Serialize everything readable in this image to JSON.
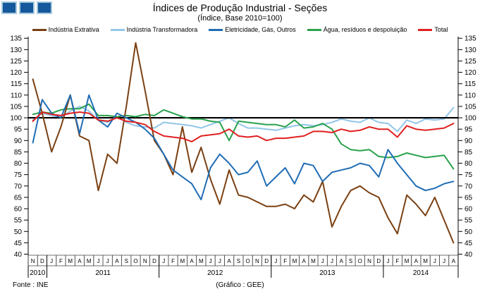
{
  "logo": {
    "square_color": "#15599c",
    "square_border": "#a9cadd",
    "count": 3
  },
  "header": {
    "title": "Índices de Produção Industrial - Seções",
    "subtitle": "(Índice, Base 2010=100)"
  },
  "footer": {
    "source": "Fonte : INE",
    "credit": "(Gráfico : GEE)"
  },
  "chart_data": {
    "type": "line",
    "title": "Índices de Produção Industrial - Seções",
    "subtitle": "(Índice, Base 2010=100)",
    "ylim": [
      40,
      135
    ],
    "ytick_step": 5,
    "baseline": 100,
    "grid": false,
    "legend_position": "top",
    "x_groups": [
      {
        "year": "2010",
        "months": [
          "N",
          "D"
        ]
      },
      {
        "year": "2011",
        "months": [
          "J",
          "F",
          "M",
          "A",
          "M",
          "J",
          "J",
          "A",
          "S",
          "O",
          "N",
          "D"
        ]
      },
      {
        "year": "2012",
        "months": [
          "J",
          "F",
          "M",
          "A",
          "M",
          "J",
          "J",
          "A",
          "S",
          "O",
          "N",
          "D"
        ]
      },
      {
        "year": "2013",
        "months": [
          "J",
          "F",
          "M",
          "A",
          "M",
          "J",
          "J",
          "A",
          "S",
          "O",
          "N",
          "D"
        ]
      },
      {
        "year": "2014",
        "months": [
          "J",
          "F",
          "M",
          "A",
          "M",
          "J",
          "J",
          "A"
        ]
      }
    ],
    "series": [
      {
        "name": "Indústria Extrativa",
        "color": "#7a4012",
        "values": [
          117,
          102,
          85,
          96,
          110,
          92,
          90,
          68,
          84,
          80,
          105,
          133,
          112,
          90,
          84,
          75,
          96,
          76,
          87,
          73,
          62,
          77,
          66,
          65,
          63,
          61,
          61,
          62,
          60,
          66,
          63,
          72,
          52,
          61,
          68,
          70,
          67,
          65,
          56,
          49,
          66,
          62,
          57,
          65,
          55,
          45
        ]
      },
      {
        "name": "Indústria Transformadora",
        "color": "#92c6e9",
        "values": [
          99,
          102,
          101,
          100,
          103,
          105,
          103,
          99,
          98,
          100.5,
          98,
          96.5,
          96,
          95.5,
          98,
          97.5,
          97,
          96.5,
          95.5,
          97,
          98.5,
          100,
          97.5,
          95.5,
          95.5,
          95,
          94.5,
          95.5,
          96.5,
          97,
          96.5,
          97,
          98,
          99.5,
          98.5,
          98,
          100,
          98,
          97.5,
          94,
          99,
          97.5,
          99.5,
          99,
          99.5,
          104.5
        ]
      },
      {
        "name": "Eletricidade, Gás, Outros",
        "color": "#1f6db5",
        "values": [
          89,
          108,
          102,
          100,
          110,
          93,
          110,
          99,
          96,
          102,
          100,
          98,
          95,
          91,
          84,
          77,
          74,
          71,
          64,
          78,
          84,
          80,
          75,
          76,
          81,
          70,
          74,
          78,
          71,
          80,
          79,
          72,
          76,
          77,
          78,
          80,
          79,
          74,
          86,
          80,
          75,
          70,
          68,
          69,
          71,
          72
        ]
      },
      {
        "name": "Água, resíduos e despoluição",
        "color": "#2aa24d",
        "values": [
          101.5,
          102.5,
          102,
          103.5,
          104,
          104,
          106,
          101,
          101,
          100.5,
          101,
          100.5,
          101.5,
          101,
          103.5,
          102,
          100.5,
          99.5,
          99.5,
          98.5,
          98,
          90,
          98.5,
          98,
          97.5,
          97,
          97,
          96,
          99,
          95.5,
          96,
          97.5,
          95,
          88.5,
          86,
          85.5,
          86,
          83,
          82.5,
          83,
          84.5,
          83.5,
          82.5,
          83,
          83.5,
          77.5
        ]
      },
      {
        "name": "Total",
        "color": "#e02020",
        "values": [
          98.5,
          102.5,
          101.5,
          101,
          102,
          102.5,
          102,
          99,
          98.5,
          100,
          98.5,
          98,
          97,
          94,
          92,
          91.5,
          91,
          89.5,
          92,
          92.5,
          93,
          95,
          92,
          91.5,
          92,
          90,
          91,
          91,
          91.5,
          92,
          94,
          94,
          93.5,
          95,
          94,
          94.5,
          96,
          95,
          95,
          91.5,
          96.5,
          95,
          94.5,
          95,
          95.5,
          97.5
        ]
      }
    ]
  }
}
